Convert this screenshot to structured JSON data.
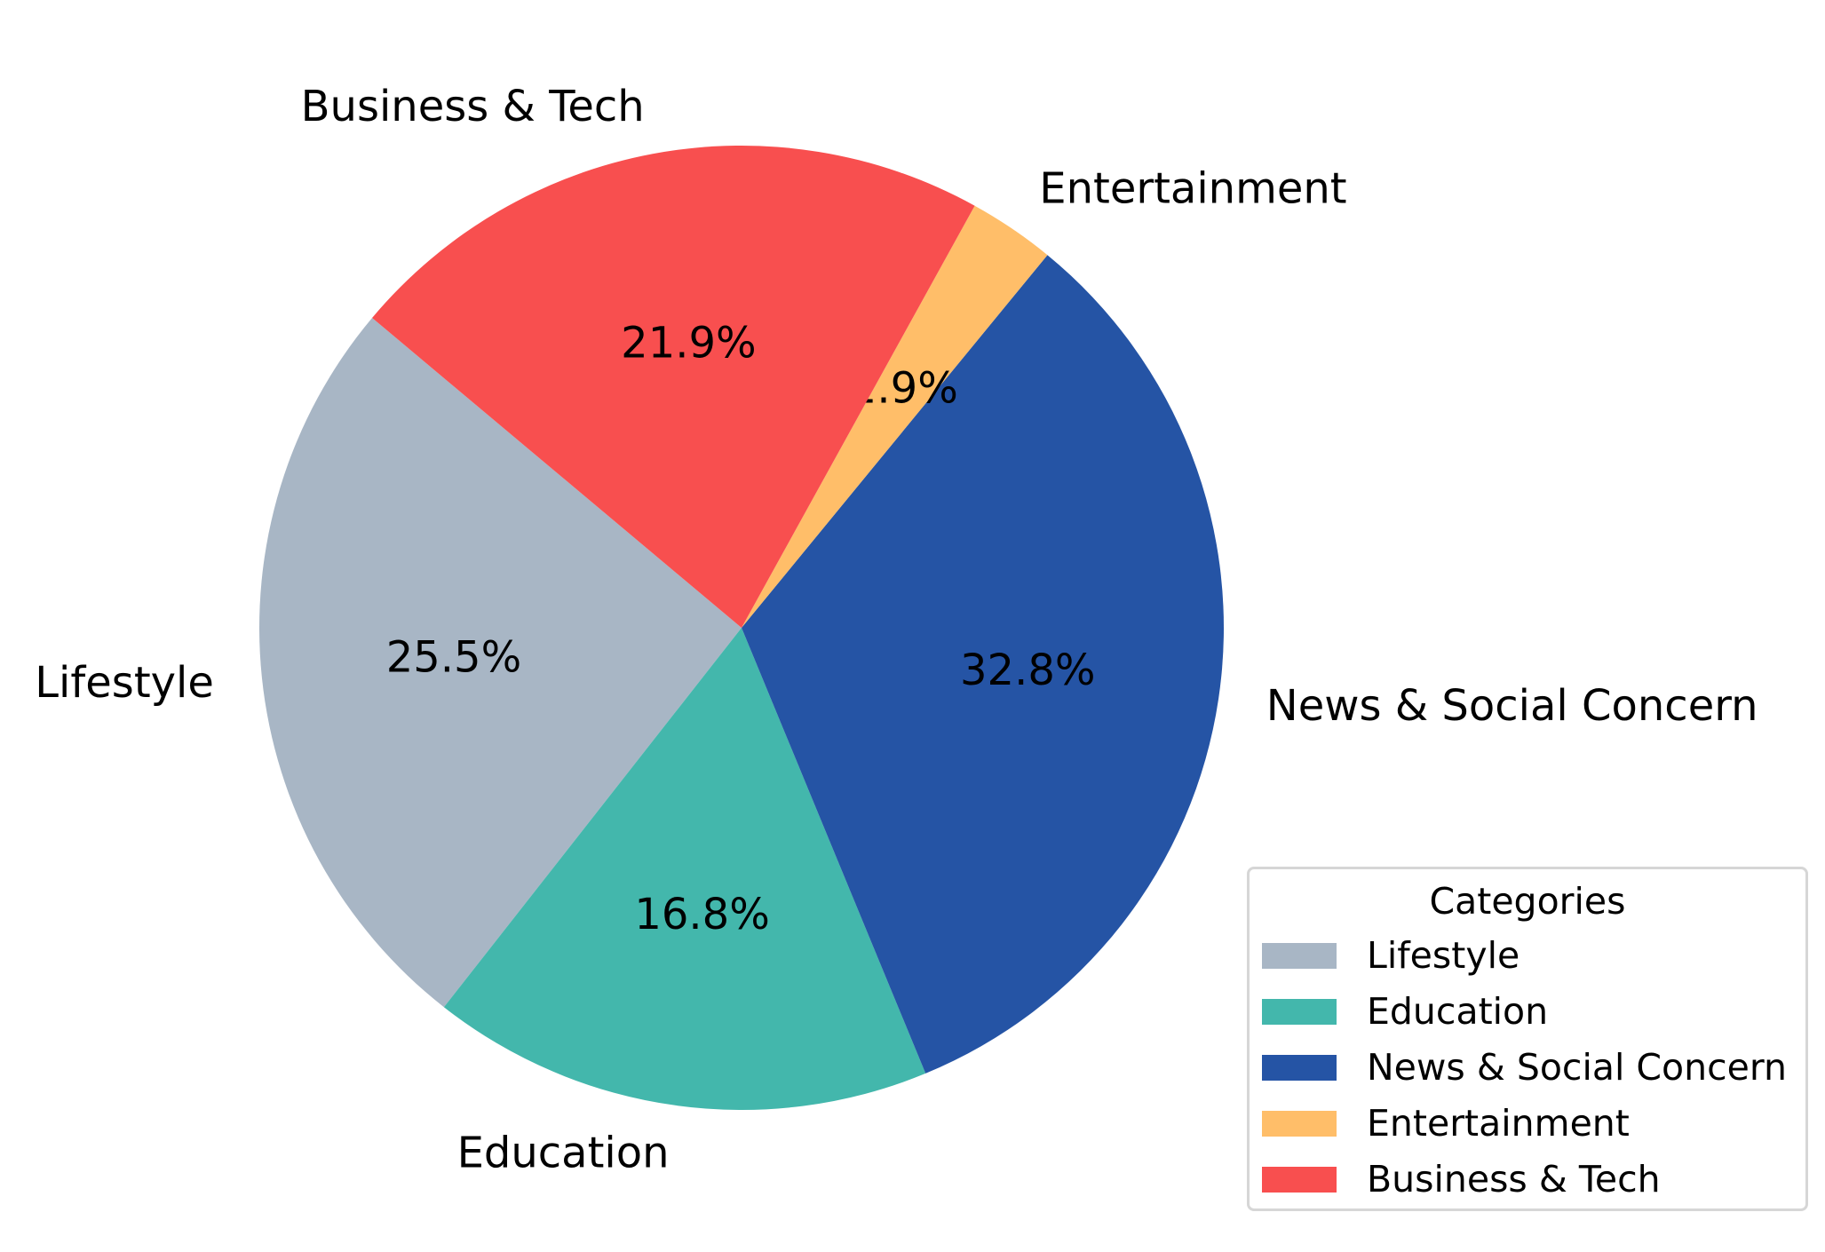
{
  "chart_data": {
    "type": "pie",
    "title": "",
    "categories": [
      "Lifestyle",
      "Education",
      "News & Social Concern",
      "Entertainment",
      "Business & Tech"
    ],
    "values": [
      25.5,
      16.8,
      32.8,
      2.9,
      21.9
    ],
    "percent_labels": [
      "25.5%",
      "16.8%",
      "32.8%",
      "2.9%",
      "21.9%"
    ],
    "colors": [
      "#a8b6c5",
      "#43b7ac",
      "#2554a5",
      "#ffbe69",
      "#f84f4f"
    ],
    "start_angle_deg": 140,
    "direction": "counterclockwise",
    "legend": {
      "title": "Categories",
      "placement": "lower-right",
      "entries": [
        "Lifestyle",
        "Education",
        "News & Social Concern",
        "Entertainment",
        "Business & Tech"
      ]
    }
  }
}
